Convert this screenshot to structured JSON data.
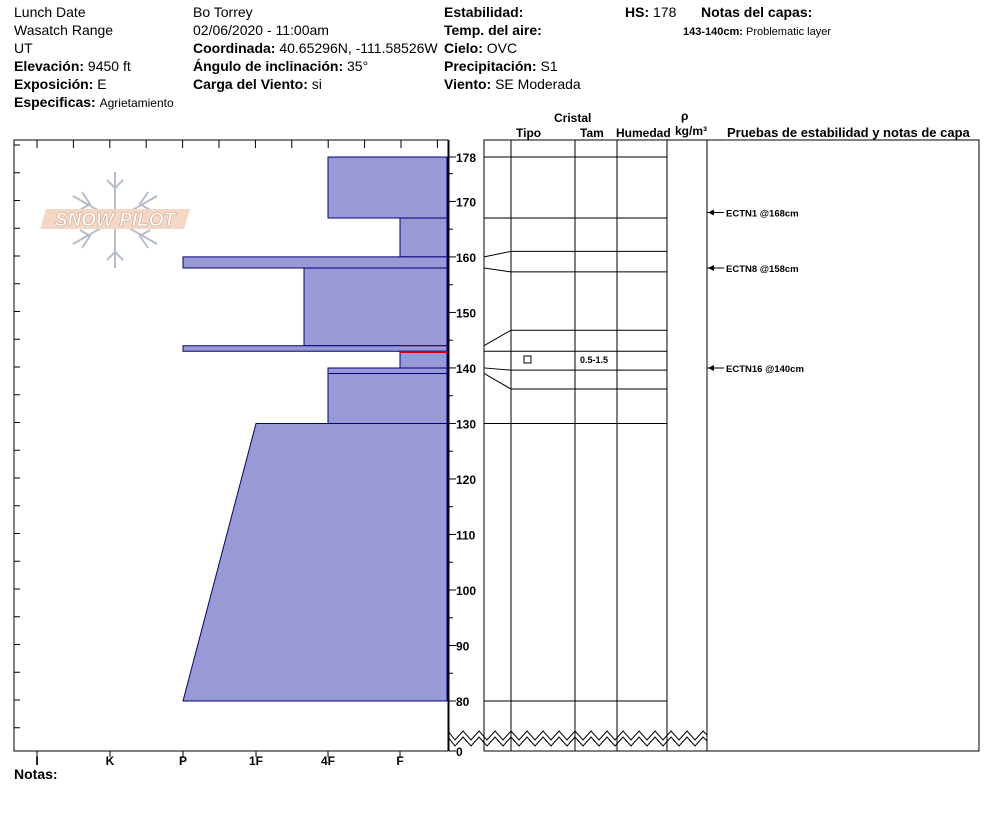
{
  "header": {
    "location_name": "Lunch Date",
    "range": "Wasatch Range",
    "state": "UT",
    "elevation_label": "Elevación:",
    "elevation_value": "9450 ft",
    "exposure_label": "Exposición:",
    "exposure_value": "E",
    "specifics_label": "Especificas:",
    "specifics_value": "Agrietamiento",
    "observer": "Bo Torrey",
    "datetime": "02/06/2020 - 11:00am",
    "coord_label": "Coordinada:",
    "coord_value": "40.65296N, -111.58526W",
    "slope_label": "Ángulo de inclinación:",
    "slope_value": "35°",
    "wind_load_label": "Carga del Viento:",
    "wind_load_value": "si",
    "stability_label": "Estabilidad:",
    "air_temp_label": "Temp. del aire:",
    "sky_label": "Cielo:",
    "sky_value": "OVC",
    "precip_label": "Precipitación:",
    "precip_value": "S1",
    "wind_label": "Viento:",
    "wind_value": "SE Moderada",
    "hs_label": "HS:",
    "hs_value": "178",
    "layer_notes_label": "Notas del capas:",
    "layer_note_range": "143-140cm:",
    "layer_note_text": "Problematic layer"
  },
  "logo_text": "SNOW PILOT",
  "columns": {
    "cristal": "Cristal",
    "tipo": "Tipo",
    "tam": "Tam",
    "humedad": "Humedad",
    "rho": "ρ",
    "density_unit": "kg/m³",
    "stability_tests": "Pruebas de estabilidad y notas de capa"
  },
  "hardness_labels": [
    "I",
    "K",
    "P",
    "1F",
    "4F",
    "F"
  ],
  "notes_label": "Notas:",
  "depth_ticks": [
    "178",
    "170",
    "160",
    "150",
    "140",
    "130",
    "120",
    "110",
    "100",
    "90",
    "80",
    "0"
  ],
  "grain_size": "0.5-1.5",
  "stability_tests": [
    {
      "label": "ECTN1 @168cm",
      "depth": 168
    },
    {
      "label": "ECTN8 @158cm",
      "depth": 158
    },
    {
      "label": "ECTN16 @140cm",
      "depth": 140
    }
  ],
  "colors": {
    "layer_fill": "#9999d6",
    "layer_edge": "#000080",
    "problem_line": "#cc0000"
  }
}
